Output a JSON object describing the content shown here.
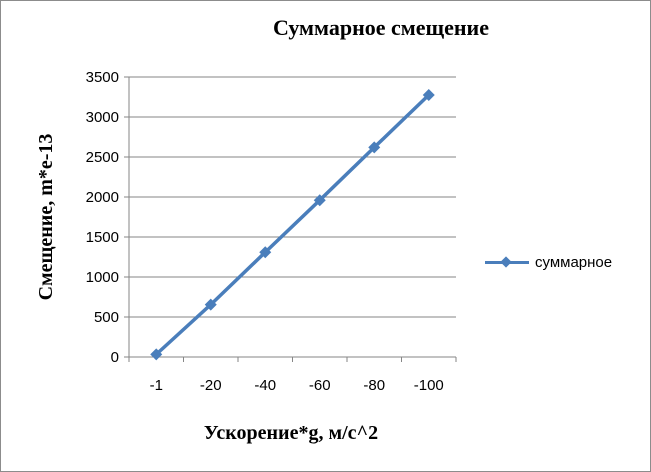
{
  "chart_data": {
    "type": "line",
    "title": "Суммарное смещение",
    "xlabel": "Ускорение*g, м/с^2",
    "ylabel": "Смещение, m*e-13",
    "categories": [
      "-1",
      "-20",
      "-40",
      "-60",
      "-80",
      "-100"
    ],
    "series": [
      {
        "name": "суммарное",
        "values": [
          33,
          655,
          1310,
          1960,
          2620,
          3275
        ],
        "color": "#4a7ebb"
      }
    ],
    "ylim": [
      0,
      3500
    ],
    "yticks": [
      0,
      500,
      1000,
      1500,
      2000,
      2500,
      3000,
      3500
    ],
    "grid": true,
    "legend": "right",
    "marker": "diamond"
  }
}
